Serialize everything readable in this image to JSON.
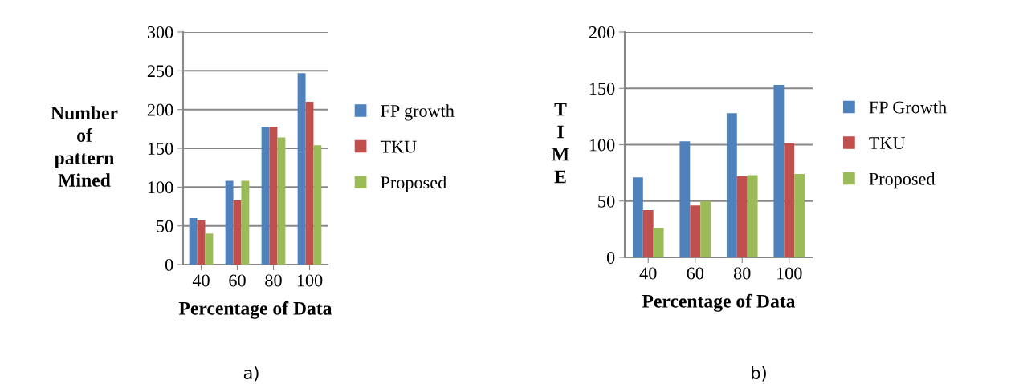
{
  "chart_data": [
    {
      "type": "bar",
      "xlabel": "Percentage of Data",
      "ylabel": "Number\nof\npattern\nMined",
      "categories": [
        "40",
        "60",
        "80",
        "100"
      ],
      "ylim": [
        0,
        300
      ],
      "yticks": [
        0,
        50,
        100,
        150,
        200,
        250,
        300
      ],
      "grid": "y",
      "legend": "right",
      "annotations": [
        "a)"
      ],
      "series": [
        {
          "name": "FP growth",
          "color": "#4f81bd",
          "values": [
            60,
            108,
            178,
            247
          ]
        },
        {
          "name": "TKU",
          "color": "#c0504d",
          "values": [
            57,
            83,
            178,
            210
          ]
        },
        {
          "name": "Proposed",
          "color": "#9bbb59",
          "values": [
            40,
            108,
            164,
            154
          ]
        }
      ]
    },
    {
      "type": "bar",
      "xlabel": "Percentage of Data",
      "ylabel": "T\nI\nM\nE",
      "categories": [
        "40",
        "60",
        "80",
        "100"
      ],
      "ylim": [
        0,
        200
      ],
      "yticks": [
        0,
        50,
        100,
        150,
        200
      ],
      "grid": "y",
      "legend": "right",
      "annotations": [
        "b)"
      ],
      "series": [
        {
          "name": "FP Growth",
          "color": "#4f81bd",
          "values": [
            71,
            103,
            128,
            153
          ]
        },
        {
          "name": "TKU",
          "color": "#c0504d",
          "values": [
            42,
            46,
            72,
            101
          ]
        },
        {
          "name": "Proposed",
          "color": "#9bbb59",
          "values": [
            26,
            50,
            73,
            74
          ]
        }
      ]
    }
  ]
}
